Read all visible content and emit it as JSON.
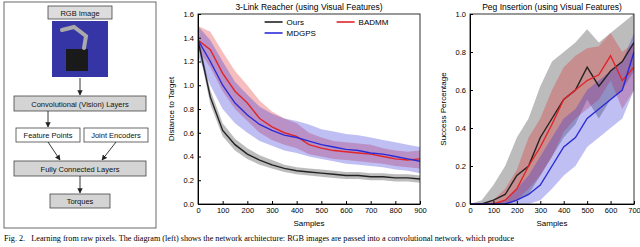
{
  "diagram": {
    "image_label": "RGB Image",
    "conv": "Convolutional (Vision) Layers",
    "features": "Feature Points",
    "joints": "Joint Encoders",
    "fc": "Fully Connected Layers",
    "output": "Torques"
  },
  "caption": "Fig. 2.   Learning from raw pixels. The diagram (left) shows the network architecture: RGB images are passed into a convolutional network, which produce",
  "chart_data": [
    {
      "type": "line",
      "title": "3-Link Reacher (using Visual Features)",
      "x_label": "Samples",
      "y_label": "Distance to Target",
      "x": [
        0,
        50,
        100,
        150,
        200,
        250,
        300,
        350,
        400,
        450,
        500,
        550,
        600,
        650,
        700,
        750,
        800,
        850,
        900
      ],
      "xlim": [
        0,
        900
      ],
      "xticks": [
        0,
        100,
        200,
        300,
        400,
        500,
        600,
        700,
        800,
        900
      ],
      "ylim": [
        0,
        1.6
      ],
      "yticks": [
        {
          "value": 0,
          "label": "0.0"
        },
        0.2,
        0.4,
        0.6,
        0.8,
        {
          "value": 1,
          "label": "1.0"
        },
        1.2,
        1.4,
        1.6
      ],
      "legend": "upper right",
      "series": [
        {
          "name": "Ours",
          "color": "#222222",
          "values": [
            1.38,
            0.9,
            0.62,
            0.5,
            0.42,
            0.37,
            0.33,
            0.3,
            0.28,
            0.27,
            0.26,
            0.25,
            0.24,
            0.24,
            0.23,
            0.23,
            0.22,
            0.22,
            0.21
          ],
          "lower": [
            1.34,
            0.84,
            0.57,
            0.45,
            0.38,
            0.33,
            0.3,
            0.27,
            0.25,
            0.24,
            0.23,
            0.22,
            0.21,
            0.21,
            0.2,
            0.2,
            0.19,
            0.19,
            0.18
          ],
          "upper": [
            1.42,
            0.96,
            0.68,
            0.55,
            0.47,
            0.41,
            0.37,
            0.33,
            0.31,
            0.3,
            0.29,
            0.28,
            0.27,
            0.27,
            0.26,
            0.26,
            0.25,
            0.25,
            0.24
          ]
        },
        {
          "name": "BADMM",
          "color": "#e0252a",
          "values": [
            1.38,
            1.3,
            1.1,
            0.95,
            0.85,
            0.72,
            0.65,
            0.6,
            0.57,
            0.5,
            0.47,
            0.45,
            0.44,
            0.43,
            0.42,
            0.4,
            0.38,
            0.37,
            0.38
          ],
          "lower": [
            1.3,
            1.15,
            0.95,
            0.8,
            0.7,
            0.6,
            0.54,
            0.5,
            0.47,
            0.42,
            0.4,
            0.38,
            0.37,
            0.36,
            0.35,
            0.34,
            0.32,
            0.31,
            0.3
          ],
          "upper": [
            1.5,
            1.45,
            1.28,
            1.12,
            1.0,
            0.87,
            0.78,
            0.72,
            0.68,
            0.6,
            0.56,
            0.53,
            0.52,
            0.51,
            0.5,
            0.47,
            0.45,
            0.44,
            0.45
          ]
        },
        {
          "name": "MDGPS",
          "color": "#2b2bd6",
          "values": [
            1.38,
            1.2,
            1.0,
            0.85,
            0.75,
            0.67,
            0.62,
            0.58,
            0.56,
            0.53,
            0.5,
            0.48,
            0.46,
            0.45,
            0.43,
            0.42,
            0.4,
            0.38,
            0.36
          ],
          "lower": [
            1.25,
            1.0,
            0.8,
            0.68,
            0.6,
            0.53,
            0.49,
            0.45,
            0.43,
            0.4,
            0.38,
            0.36,
            0.34,
            0.33,
            0.32,
            0.31,
            0.29,
            0.28,
            0.26
          ],
          "upper": [
            1.5,
            1.38,
            1.2,
            1.03,
            0.92,
            0.82,
            0.76,
            0.72,
            0.7,
            0.67,
            0.63,
            0.61,
            0.59,
            0.58,
            0.56,
            0.54,
            0.52,
            0.5,
            0.48
          ]
        }
      ]
    },
    {
      "type": "line",
      "title": "Peg Insertion (using Visual Features)",
      "x_label": "Samples",
      "y_label": "Success Percentage",
      "x": [
        0,
        50,
        100,
        150,
        200,
        250,
        300,
        350,
        400,
        450,
        500,
        550,
        600,
        650,
        700
      ],
      "xlim": [
        0,
        700
      ],
      "xticks": [
        0,
        100,
        200,
        300,
        400,
        500,
        600,
        700
      ],
      "ylim": [
        0,
        1
      ],
      "yticks": [
        {
          "value": 0,
          "label": "0.0"
        },
        0.2,
        0.4,
        0.6,
        0.8,
        {
          "value": 1,
          "label": "1.0"
        }
      ],
      "series": [
        {
          "color": "#222222",
          "values": [
            0,
            0,
            0.02,
            0.05,
            0.15,
            0.2,
            0.35,
            0.45,
            0.55,
            0.6,
            0.72,
            0.62,
            0.7,
            0.75,
            0.85
          ],
          "lower": [
            0,
            0,
            0,
            0,
            0.02,
            0.05,
            0.15,
            0.25,
            0.35,
            0.42,
            0.55,
            0.45,
            0.55,
            0.6,
            0.7
          ],
          "upper": [
            0,
            0.02,
            0.1,
            0.2,
            0.35,
            0.45,
            0.62,
            0.75,
            0.8,
            0.85,
            0.92,
            0.85,
            0.9,
            0.95,
            1.0
          ]
        },
        {
          "color": "#e0252a",
          "values": [
            0,
            0,
            0,
            0.02,
            0.08,
            0.2,
            0.3,
            0.42,
            0.55,
            0.6,
            0.65,
            0.68,
            0.78,
            0.65,
            0.72
          ],
          "lower": [
            0,
            0,
            0,
            0,
            0.02,
            0.08,
            0.15,
            0.25,
            0.38,
            0.45,
            0.5,
            0.55,
            0.65,
            0.5,
            0.6
          ],
          "upper": [
            0,
            0,
            0.02,
            0.08,
            0.18,
            0.35,
            0.45,
            0.6,
            0.72,
            0.78,
            0.82,
            0.83,
            0.9,
            0.8,
            0.85
          ]
        },
        {
          "color": "#2b2bd6",
          "values": [
            0,
            0,
            0,
            0,
            0.02,
            0.05,
            0.1,
            0.2,
            0.3,
            0.35,
            0.45,
            0.5,
            0.55,
            0.6,
            0.8
          ],
          "lower": [
            0,
            0,
            0,
            0,
            0,
            0,
            0.02,
            0.08,
            0.15,
            0.2,
            0.3,
            0.35,
            0.4,
            0.45,
            0.6
          ],
          "upper": [
            0,
            0,
            0,
            0.02,
            0.08,
            0.15,
            0.25,
            0.35,
            0.45,
            0.5,
            0.6,
            0.65,
            0.7,
            0.75,
            0.9
          ]
        }
      ]
    }
  ]
}
